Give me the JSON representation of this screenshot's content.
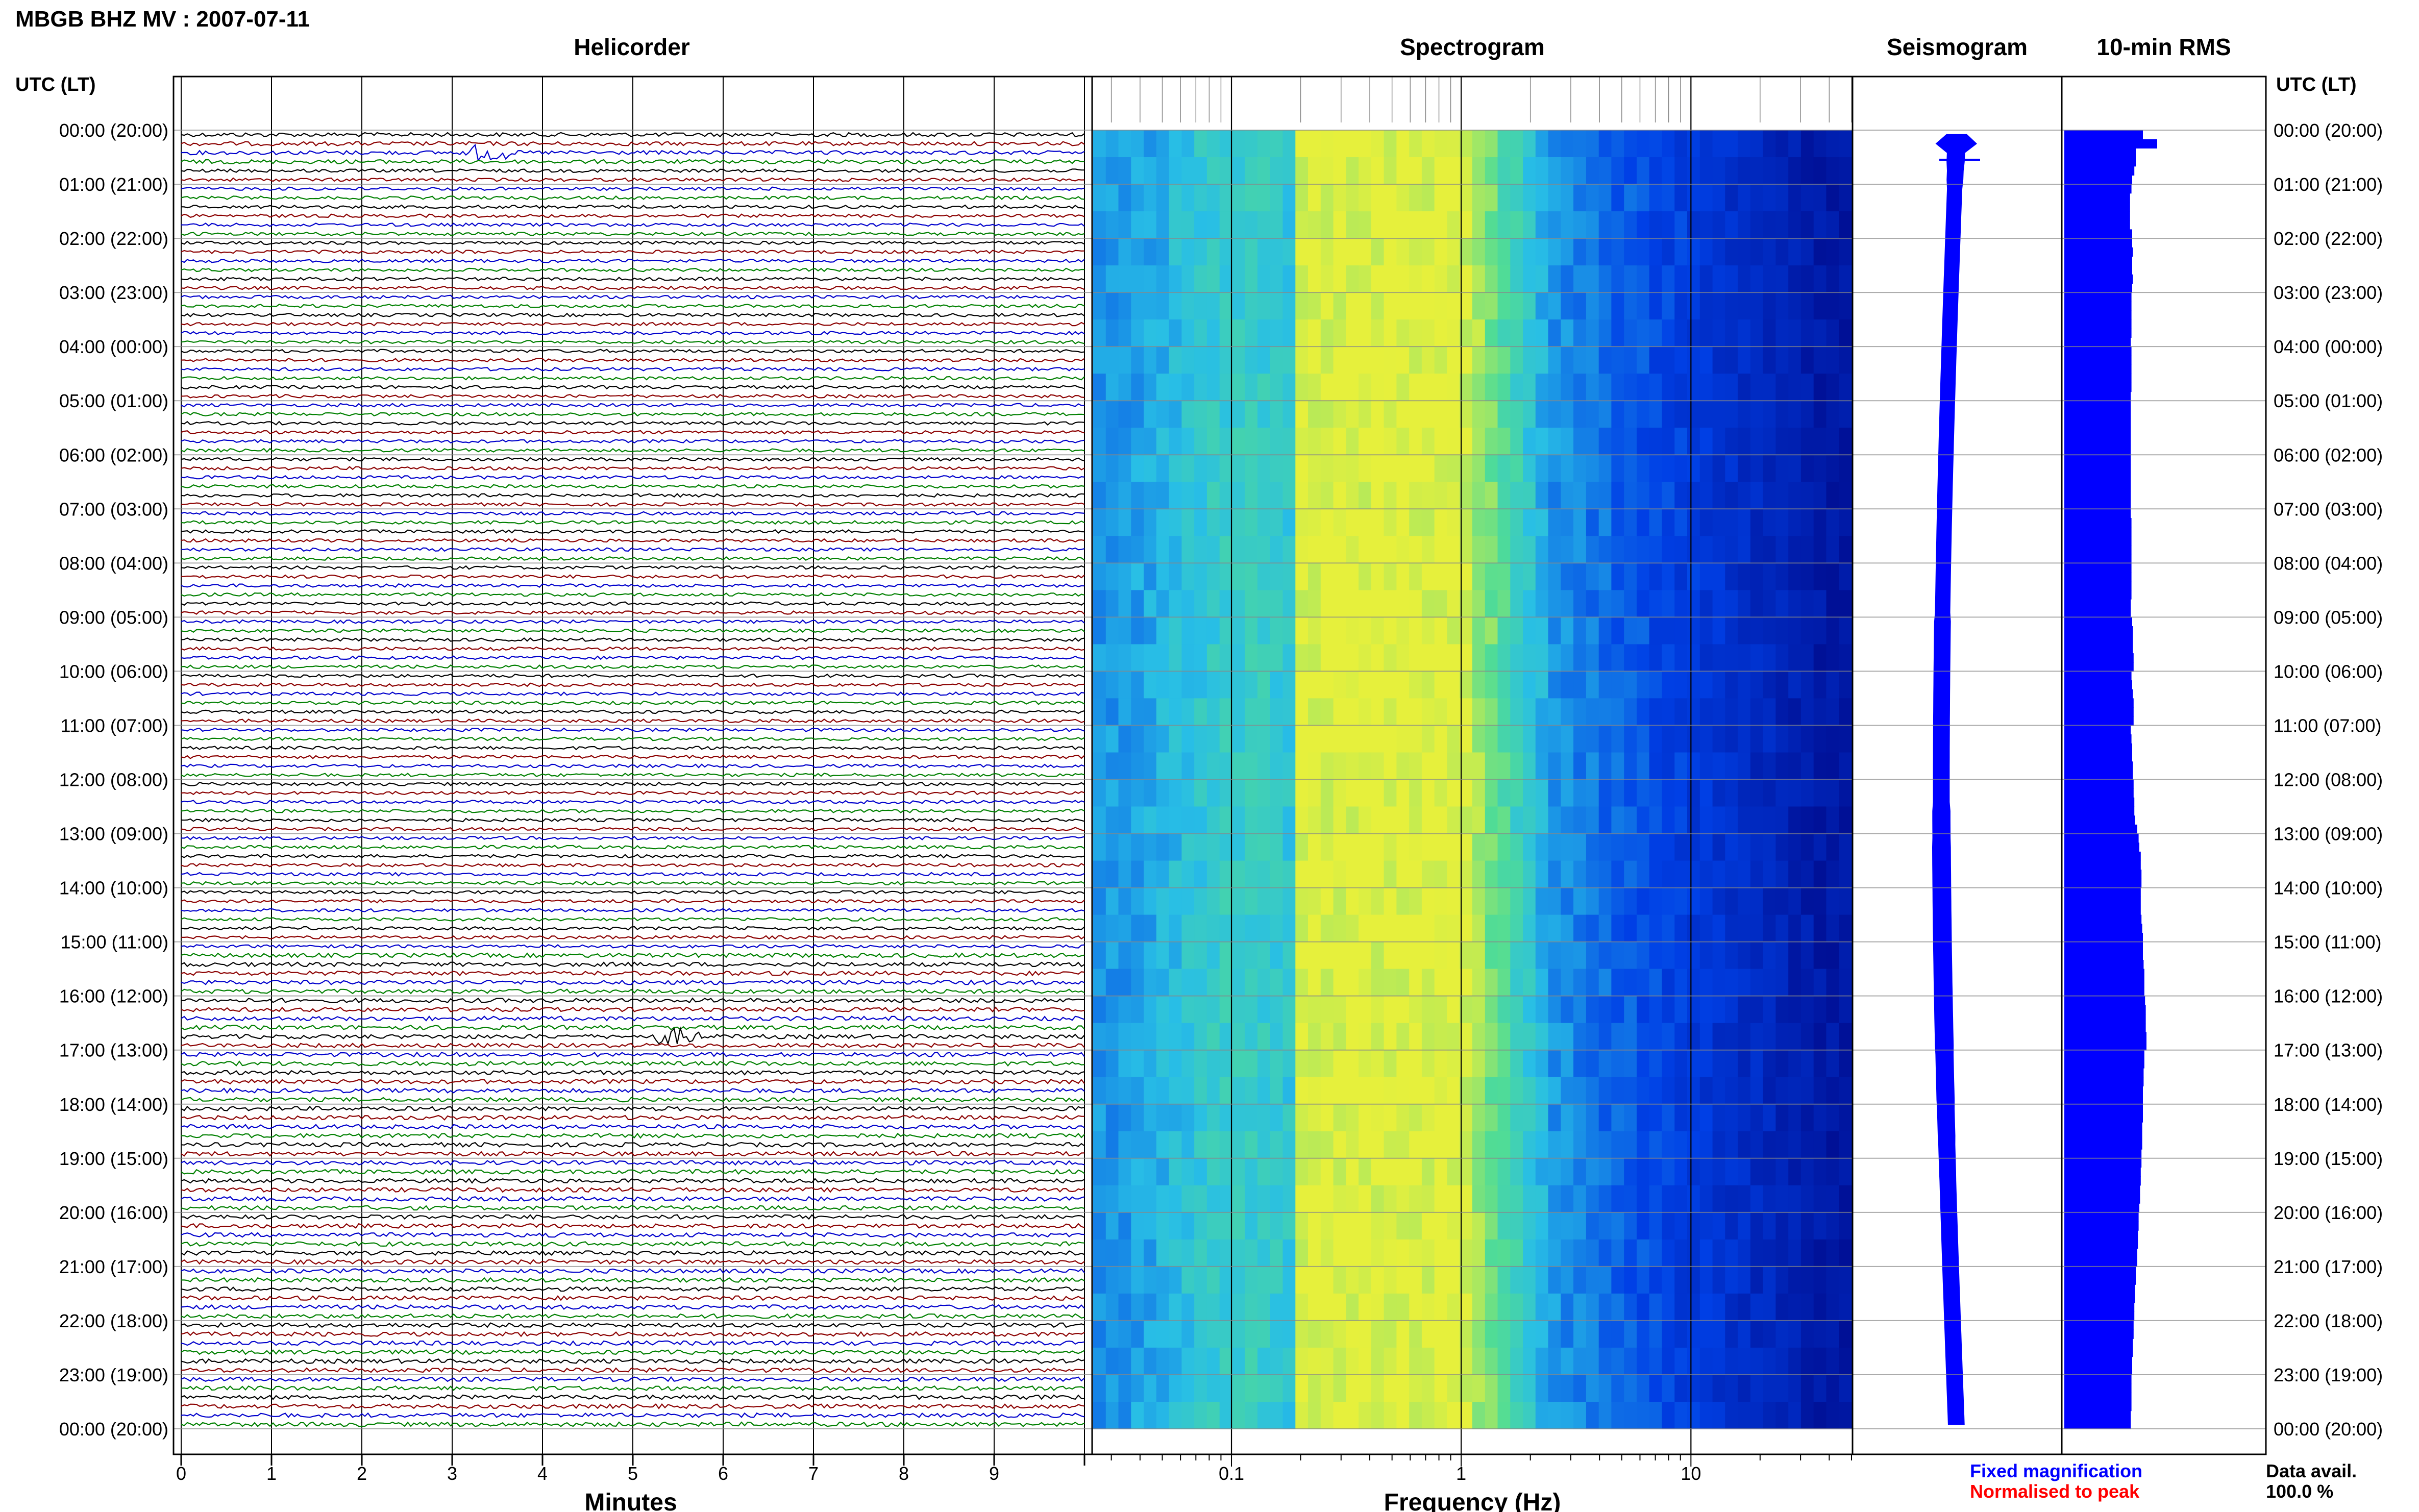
{
  "header": {
    "title": "MBGB BHZ MV : 2007-07-11",
    "utc_label_left": "UTC (LT)",
    "utc_label_right": "UTC (LT)"
  },
  "panels": {
    "helicorder": "Helicorder",
    "spectrogram": "Spectrogram",
    "seismogram": "Seismogram",
    "rms": "10-min RMS"
  },
  "axes": {
    "minutes_label": "Minutes",
    "minute_ticks": [
      "0",
      "1",
      "2",
      "3",
      "4",
      "5",
      "6",
      "7",
      "8",
      "9"
    ],
    "frequency_label": "Frequency (Hz)",
    "frequency_ticks": [
      "0.1",
      "1",
      "10"
    ]
  },
  "footer": {
    "fixed": "Fixed magnification",
    "normalised": "Normalised to peak",
    "data_avail_label": "Data avail.",
    "data_avail_value": "100.0 %"
  },
  "colors": {
    "trace_colors": [
      "#000000",
      "#8b0000",
      "#0000cc",
      "#008000"
    ],
    "fixed_text": "#0000ff",
    "normalised_text": "#ff0000",
    "rms_fill": "#0000ff",
    "seismo_fill": "#0000ff",
    "spectro_low": "#40e0d0",
    "spectro_peak": "#ffff33",
    "spectro_high": "#0010a0"
  },
  "chart_data": {
    "type": "heatmap",
    "hour_labels": [
      "00:00 (20:00)",
      "01:00 (21:00)",
      "02:00 (22:00)",
      "03:00 (23:00)",
      "04:00 (00:00)",
      "05:00 (01:00)",
      "06:00 (02:00)",
      "07:00 (03:00)",
      "08:00 (04:00)",
      "09:00 (05:00)",
      "10:00 (06:00)",
      "11:00 (07:00)",
      "12:00 (08:00)",
      "13:00 (09:00)",
      "14:00 (10:00)",
      "15:00 (11:00)",
      "16:00 (12:00)",
      "17:00 (13:00)",
      "18:00 (14:00)",
      "19:00 (15:00)",
      "20:00 (16:00)",
      "21:00 (17:00)",
      "22:00 (18:00)",
      "23:00 (19:00)",
      "00:00 (20:00)"
    ],
    "helicorder": {
      "minutes_range": [
        0,
        10
      ],
      "rows_per_hour": 6,
      "events": [
        {
          "hour": 0.333,
          "minute": 3.4,
          "color_index": 3
        },
        {
          "hour": 16.667,
          "minute": 5.5,
          "color_index": 0
        }
      ]
    },
    "spectrogram": {
      "freq_range_hz": [
        0.025,
        50
      ],
      "peak_band_hz": [
        0.2,
        0.9
      ],
      "log_scale": true
    },
    "rms_10min": [
      1.1,
      1.3,
      1.0,
      1.0,
      0.98,
      0.95,
      0.94,
      0.92,
      0.92,
      0.92,
      0.92,
      0.95,
      0.95,
      0.96,
      0.95,
      0.95,
      0.96,
      0.95,
      0.94,
      0.94,
      0.94,
      0.94,
      0.94,
      0.93,
      0.94,
      0.94,
      0.94,
      0.94,
      0.94,
      0.93,
      0.93,
      0.93,
      0.93,
      0.93,
      0.93,
      0.93,
      0.93,
      0.93,
      0.93,
      0.93,
      0.93,
      0.93,
      0.93,
      0.94,
      0.94,
      0.94,
      0.94,
      0.94,
      0.94,
      0.94,
      0.94,
      0.94,
      0.93,
      0.93,
      0.95,
      0.96,
      0.96,
      0.96,
      0.97,
      0.97,
      0.94,
      0.95,
      0.96,
      0.97,
      0.97,
      0.97,
      0.93,
      0.94,
      0.95,
      0.95,
      0.96,
      0.96,
      0.97,
      0.97,
      0.98,
      0.98,
      0.99,
      1.02,
      1.04,
      1.05,
      1.07,
      1.07,
      1.08,
      1.08,
      1.07,
      1.07,
      1.07,
      1.08,
      1.09,
      1.1,
      1.1,
      1.1,
      1.11,
      1.12,
      1.12,
      1.12,
      1.13,
      1.14,
      1.14,
      1.14,
      1.15,
      1.15,
      1.12,
      1.12,
      1.11,
      1.11,
      1.1,
      1.1,
      1.1,
      1.1,
      1.09,
      1.09,
      1.09,
      1.08,
      1.08,
      1.07,
      1.07,
      1.06,
      1.06,
      1.05,
      1.04,
      1.04,
      1.03,
      1.03,
      1.02,
      1.02,
      1.0,
      1.0,
      0.99,
      0.99,
      0.98,
      0.98,
      0.97,
      0.97,
      0.96,
      0.96,
      0.95,
      0.95,
      0.94,
      0.94,
      0.94,
      0.94,
      0.93,
      0.93
    ],
    "seismogram_width": [
      0.7,
      1.4,
      0.6,
      0.6,
      0.55,
      0.55,
      0.5,
      0.5,
      0.5,
      0.5,
      0.5,
      0.5,
      0.5,
      0.5,
      0.5,
      0.5,
      0.5,
      0.5,
      0.5,
      0.5,
      0.5,
      0.5,
      0.5,
      0.5,
      0.5,
      0.5,
      0.5,
      0.5,
      0.5,
      0.5,
      0.5,
      0.5,
      0.5,
      0.5,
      0.5,
      0.5,
      0.5,
      0.5,
      0.5,
      0.5,
      0.5,
      0.5,
      0.5,
      0.5,
      0.5,
      0.5,
      0.5,
      0.5,
      0.5,
      0.5,
      0.5,
      0.5,
      0.5,
      0.5,
      0.55,
      0.55,
      0.55,
      0.55,
      0.55,
      0.55,
      0.55,
      0.55,
      0.55,
      0.55,
      0.55,
      0.55,
      0.55,
      0.55,
      0.55,
      0.55,
      0.55,
      0.55,
      0.55,
      0.55,
      0.55,
      0.6,
      0.6,
      0.6,
      0.6,
      0.62,
      0.62,
      0.62,
      0.62,
      0.62,
      0.62,
      0.62,
      0.62,
      0.62,
      0.62,
      0.62,
      0.62,
      0.62,
      0.62,
      0.62,
      0.62,
      0.62,
      0.62,
      0.62,
      0.62,
      0.62,
      0.62,
      0.62,
      0.6,
      0.6,
      0.6,
      0.6,
      0.6,
      0.6,
      0.58,
      0.58,
      0.58,
      0.58,
      0.56,
      0.56,
      0.56,
      0.56,
      0.55,
      0.55,
      0.55,
      0.55,
      0.55,
      0.55,
      0.55,
      0.55,
      0.55,
      0.55,
      0.55,
      0.55,
      0.55,
      0.55,
      0.55,
      0.55,
      0.55,
      0.55,
      0.55,
      0.55,
      0.55,
      0.55,
      0.55,
      0.55,
      0.55,
      0.55,
      0.55,
      0.55
    ]
  }
}
